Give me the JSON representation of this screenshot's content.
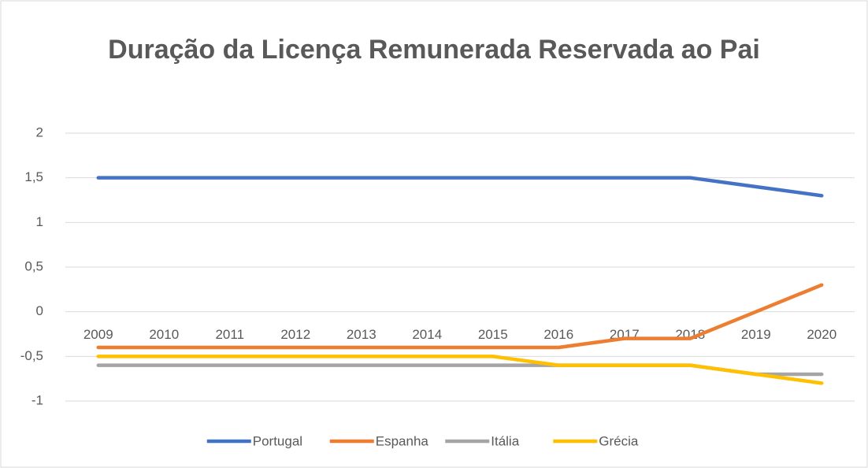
{
  "chart_data": {
    "type": "line",
    "title": "Duração da Licença Remunerada Reservada ao Pai",
    "categories": [
      "2009",
      "2010",
      "2011",
      "2012",
      "2013",
      "2014",
      "2015",
      "2016",
      "2017",
      "2018",
      "2019",
      "2020"
    ],
    "series": [
      {
        "name": "Portugal",
        "color": "#4472c4",
        "values": [
          1.5,
          1.5,
          1.5,
          1.5,
          1.5,
          1.5,
          1.5,
          1.5,
          1.5,
          1.5,
          1.4,
          1.3
        ]
      },
      {
        "name": "Espanha",
        "color": "#ed7d31",
        "values": [
          -0.4,
          -0.4,
          -0.4,
          -0.4,
          -0.4,
          -0.4,
          -0.4,
          -0.4,
          -0.3,
          -0.3,
          0,
          0.3
        ]
      },
      {
        "name": "Itália",
        "color": "#a5a5a5",
        "values": [
          -0.6,
          -0.6,
          -0.6,
          -0.6,
          -0.6,
          -0.6,
          -0.6,
          -0.6,
          -0.6,
          -0.6,
          -0.7,
          -0.7
        ]
      },
      {
        "name": "Grécia",
        "color": "#ffc000",
        "values": [
          -0.5,
          -0.5,
          -0.5,
          -0.5,
          -0.5,
          -0.5,
          -0.5,
          -0.6,
          -0.6,
          -0.6,
          -0.7,
          -0.8
        ]
      }
    ],
    "ylim": [
      -1,
      2
    ],
    "yticks": [
      {
        "value": -1,
        "label": "-1"
      },
      {
        "value": -0.5,
        "label": "-0,5"
      },
      0,
      {
        "value": 0.5,
        "label": "0,5"
      },
      1,
      {
        "value": 1.5,
        "label": "1,5"
      },
      2
    ],
    "grid": true,
    "legend": "bottom"
  }
}
